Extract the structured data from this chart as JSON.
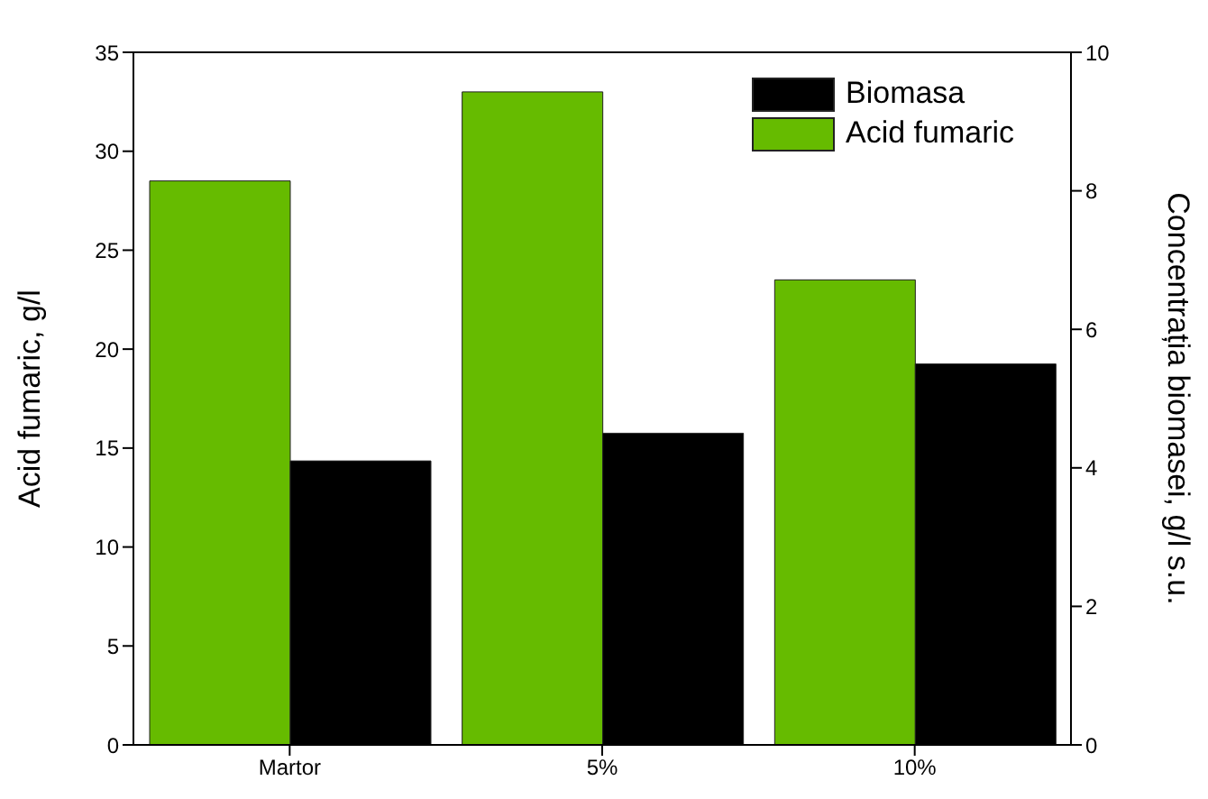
{
  "chart_data": {
    "type": "bar",
    "categories": [
      "Martor",
      "5%",
      "10%"
    ],
    "series": [
      {
        "name": "Acid fumaric",
        "color": "#66bb00",
        "values": [
          28.5,
          33,
          23.5
        ]
      },
      {
        "name": "Biomasa",
        "color": "#000000",
        "values": [
          4.1,
          4.5,
          5.5
        ],
        "axis": "y2"
      }
    ],
    "ylabel": "Acid fumaric, g/l",
    "y2label": "Concentrația biomasei, g/l s.u.",
    "ylim": [
      0,
      35
    ],
    "yticks": [
      0,
      5,
      10,
      15,
      20,
      25,
      30,
      35
    ],
    "y2lim": [
      0,
      10
    ],
    "y2ticks": [
      0,
      2,
      4,
      6,
      8,
      10
    ],
    "legend": "top right",
    "grid": false
  }
}
